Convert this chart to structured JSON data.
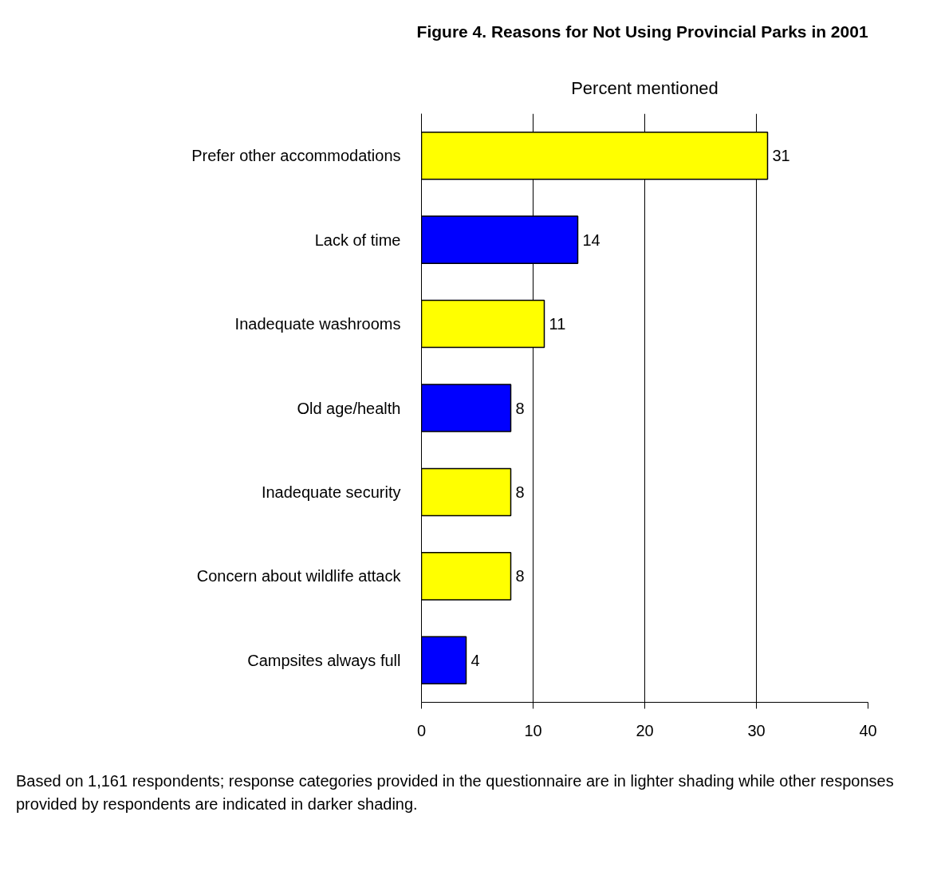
{
  "chart_data": {
    "type": "bar",
    "orientation": "horizontal",
    "title": "Figure 4.  Reasons for Not Using Provincial Parks in 2001",
    "xlabel": "Percent mentioned",
    "categories": [
      "Prefer other accommodations",
      "Lack of time",
      "Inadequate washrooms",
      "Old age/health",
      "Inadequate security",
      "Concern about wildlife attack",
      "Campsites always full"
    ],
    "values": [
      31,
      14,
      11,
      8,
      8,
      8,
      4
    ],
    "colors": [
      "#ffff00",
      "#0000ff",
      "#ffff00",
      "#0000ff",
      "#ffff00",
      "#ffff00",
      "#0000ff"
    ],
    "xlim": [
      0,
      40
    ],
    "xticks": [
      0,
      10,
      20,
      30,
      40
    ],
    "grid": "x",
    "data_labels": true,
    "annotations": [
      "Based on 1,161 respondents; response categories provided in the questionnaire are in lighter shading while other responses provided by respondents are indicated in darker shading."
    ]
  }
}
